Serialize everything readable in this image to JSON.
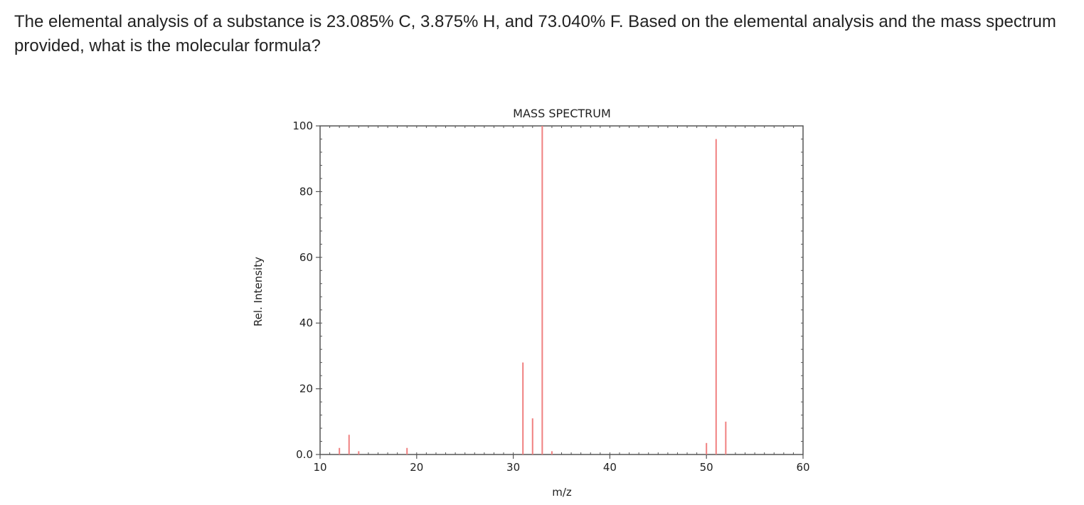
{
  "question": {
    "text": "The elemental analysis of a substance is 23.085% C, 3.875% H, and 73.040% F. Based on the elemental analysis and the mass spectrum provided, what is the molecular formula?"
  },
  "chart_data": {
    "type": "bar",
    "title": "MASS SPECTRUM",
    "xlabel": "m/z",
    "ylabel": "Rel. Intensity",
    "xlim": [
      10,
      60
    ],
    "ylim": [
      0,
      100
    ],
    "xticks": [
      10,
      20,
      30,
      40,
      50,
      60
    ],
    "yticks": [
      0,
      20,
      40,
      60,
      80,
      100
    ],
    "ytick_labels": [
      "0.0",
      "20",
      "40",
      "60",
      "80",
      "100"
    ],
    "grid": false,
    "series": [
      {
        "x": [
          12,
          13,
          14,
          19,
          31,
          32,
          33,
          34,
          50,
          51,
          52
        ],
        "values": [
          2,
          6,
          1,
          2,
          28,
          11,
          100,
          1,
          3.5,
          96,
          10
        ]
      }
    ],
    "colors": {
      "peak": "#f08080",
      "axis": "#555555"
    }
  }
}
